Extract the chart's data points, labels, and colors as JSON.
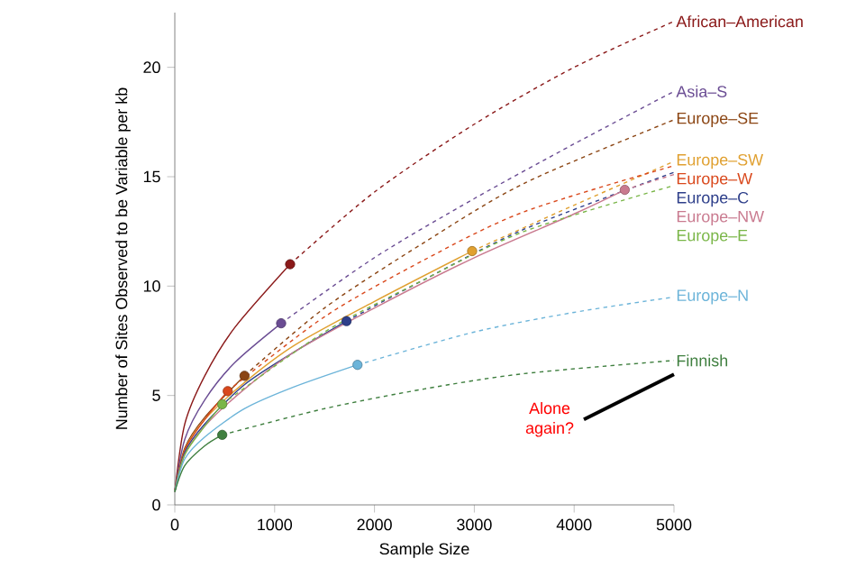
{
  "chart_data": {
    "type": "line",
    "xlabel": "Sample Size",
    "ylabel": "Number of Sites Observed to be Variable per kb",
    "xlim": [
      0,
      5000
    ],
    "ylim": [
      0,
      22.5
    ],
    "xticks": [
      0,
      1000,
      2000,
      3000,
      4000,
      5000
    ],
    "yticks": [
      0,
      5,
      10,
      15,
      20
    ],
    "grid": false,
    "series": [
      {
        "color": "#8b1a1a",
        "x": [
          0,
          100,
          300,
          600,
          1155
        ],
        "values": [
          0.6,
          3.7,
          5.9,
          8.1,
          11.0
        ]
      },
      {
        "name": "African–American",
        "color": "#8b1a1a",
        "line_style": "dashed",
        "x": [
          1155,
          2000,
          3000,
          4000,
          5000
        ],
        "values": [
          11.0,
          14.3,
          17.4,
          20.0,
          22.1
        ]
      },
      {
        "color": "#6a4c93",
        "x": [
          0,
          100,
          300,
          600,
          1065
        ],
        "values": [
          0.6,
          3.0,
          4.8,
          6.5,
          8.3
        ]
      },
      {
        "name": "Asia–S",
        "color": "#6a4c93",
        "line_style": "dashed",
        "x": [
          1065,
          2000,
          3000,
          4000,
          5000
        ],
        "values": [
          8.3,
          11.3,
          14.0,
          16.5,
          18.9
        ]
      },
      {
        "color": "#8b4513",
        "x": [
          0,
          100,
          300,
          698
        ],
        "values": [
          0.6,
          2.6,
          4.0,
          5.9
        ]
      },
      {
        "name": "Europe–SE",
        "color": "#8b4513",
        "line_style": "dashed",
        "x": [
          698,
          1500,
          2500,
          3500,
          5000
        ],
        "values": [
          5.9,
          9.0,
          12.0,
          14.7,
          17.6
        ]
      },
      {
        "color": "#e0a030",
        "x": [
          0,
          100,
          300,
          700,
          1200,
          2000,
          2978
        ],
        "values": [
          0.6,
          2.5,
          3.9,
          5.6,
          7.3,
          9.3,
          11.6
        ]
      },
      {
        "name": "Europe–SW",
        "color": "#e0a030",
        "line_style": "dashed",
        "x": [
          2978,
          4000,
          5000
        ],
        "values": [
          11.6,
          13.7,
          15.7
        ]
      },
      {
        "color": "#d9481c",
        "x": [
          0,
          100,
          300,
          530
        ],
        "values": [
          0.6,
          2.5,
          3.9,
          5.2
        ]
      },
      {
        "name": "Europe–W",
        "color": "#d9481c",
        "line_style": "dashed",
        "x": [
          530,
          1500,
          2500,
          3500,
          5000
        ],
        "values": [
          5.2,
          8.6,
          11.2,
          13.4,
          15.5
        ]
      },
      {
        "color": "#2e3f8a",
        "x": [
          0,
          100,
          300,
          700,
          1200,
          1720
        ],
        "values": [
          0.6,
          2.4,
          3.7,
          5.5,
          7.0,
          8.4
        ]
      },
      {
        "name": "Europe–C",
        "color": "#2e3f8a",
        "line_style": "dashed",
        "x": [
          1720,
          2500,
          3500,
          5000
        ],
        "values": [
          8.4,
          10.3,
          12.6,
          15.2
        ]
      },
      {
        "color": "#c97a8f",
        "x": [
          0,
          100,
          300,
          700,
          1200,
          2000,
          3000,
          4000,
          4507
        ],
        "values": [
          0.6,
          2.3,
          3.6,
          5.3,
          7.0,
          9.0,
          11.3,
          13.3,
          14.4
        ]
      },
      {
        "name": "Europe–NW",
        "color": "#c97a8f",
        "line_style": "dashed",
        "x": [
          4507,
          5000
        ],
        "values": [
          14.4,
          15.1
        ]
      },
      {
        "color": "#7ab648",
        "x": [
          0,
          100,
          300,
          475
        ],
        "values": [
          0.6,
          2.3,
          3.6,
          4.6
        ]
      },
      {
        "name": "Europe–E",
        "color": "#7ab648",
        "line_style": "dashed",
        "x": [
          475,
          1500,
          2500,
          3500,
          5000
        ],
        "values": [
          4.6,
          7.9,
          10.3,
          12.5,
          14.6
        ]
      },
      {
        "color": "#6cb4d9",
        "x": [
          0,
          100,
          300,
          700,
          1200,
          1830
        ],
        "values": [
          0.6,
          2.1,
          3.1,
          4.4,
          5.4,
          6.4
        ]
      },
      {
        "name": "Europe–N",
        "color": "#6cb4d9",
        "line_style": "dashed",
        "x": [
          1830,
          3000,
          4000,
          5000
        ],
        "values": [
          6.4,
          7.9,
          8.8,
          9.5
        ]
      },
      {
        "color": "#3f7f3f",
        "x": [
          0,
          100,
          300,
          475
        ],
        "values": [
          0.6,
          1.8,
          2.7,
          3.2
        ]
      },
      {
        "name": "Finnish",
        "color": "#3f7f3f",
        "line_style": "dashed",
        "x": [
          475,
          1500,
          2500,
          3500,
          5000
        ],
        "values": [
          3.2,
          4.4,
          5.3,
          6.0,
          6.6
        ]
      },
      {
        "type": "scatter",
        "marker": "circle",
        "x": [
          1155,
          1065,
          698,
          2978,
          530,
          1720,
          4507,
          475,
          1830,
          475
        ],
        "values": [
          11.0,
          8.3,
          5.9,
          11.6,
          5.2,
          8.4,
          14.4,
          4.6,
          6.4,
          3.2
        ],
        "colors": [
          "#8b1a1a",
          "#6a4c93",
          "#8b4513",
          "#e0a030",
          "#d9481c",
          "#2e3f8a",
          "#c97a8f",
          "#7ab648",
          "#6cb4d9",
          "#3f7f3f"
        ]
      }
    ],
    "annotations": [
      "Alone again?"
    ]
  }
}
